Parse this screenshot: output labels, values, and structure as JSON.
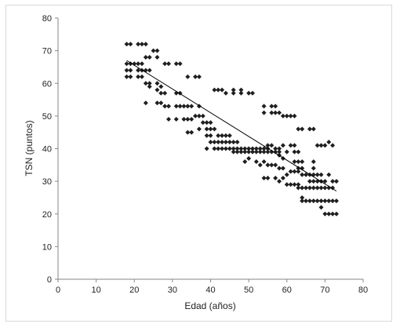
{
  "chart_data": {
    "type": "scatter",
    "xlabel": "Edad (años)",
    "ylabel": "TSN (puntos)",
    "xlim": [
      0,
      80
    ],
    "ylim": [
      0,
      80
    ],
    "xticks": [
      0,
      10,
      20,
      30,
      40,
      50,
      60,
      70,
      80
    ],
    "yticks": [
      0,
      10,
      20,
      30,
      40,
      50,
      60,
      70,
      80
    ],
    "grid": false,
    "marker": "diamond",
    "marker_color": "#1f1f1f",
    "trendline": {
      "x": [
        18,
        73
      ],
      "y": [
        67,
        27
      ],
      "color": "#000000"
    },
    "points": [
      [
        18,
        72
      ],
      [
        19,
        72
      ],
      [
        21,
        72
      ],
      [
        22,
        72
      ],
      [
        23,
        72
      ],
      [
        18,
        66
      ],
      [
        19,
        66
      ],
      [
        20,
        66
      ],
      [
        21,
        66
      ],
      [
        22,
        66
      ],
      [
        18,
        64
      ],
      [
        19,
        64
      ],
      [
        21,
        64
      ],
      [
        22,
        64
      ],
      [
        23,
        64
      ],
      [
        24,
        64
      ],
      [
        18,
        62
      ],
      [
        19,
        62
      ],
      [
        21,
        62
      ],
      [
        22,
        62
      ],
      [
        23,
        68
      ],
      [
        24,
        68
      ],
      [
        25,
        70
      ],
      [
        26,
        70
      ],
      [
        26,
        68
      ],
      [
        23,
        60
      ],
      [
        24,
        60
      ],
      [
        24,
        59
      ],
      [
        26,
        60
      ],
      [
        27,
        59
      ],
      [
        26,
        58
      ],
      [
        27,
        57
      ],
      [
        23,
        54
      ],
      [
        26,
        54
      ],
      [
        27,
        54
      ],
      [
        28,
        66
      ],
      [
        29,
        66
      ],
      [
        31,
        66
      ],
      [
        32,
        66
      ],
      [
        28,
        57
      ],
      [
        31,
        57
      ],
      [
        32,
        57
      ],
      [
        28,
        53
      ],
      [
        29,
        53
      ],
      [
        31,
        53
      ],
      [
        32,
        53
      ],
      [
        33,
        53
      ],
      [
        34,
        53
      ],
      [
        35,
        53
      ],
      [
        29,
        49
      ],
      [
        31,
        49
      ],
      [
        33,
        49
      ],
      [
        34,
        49
      ],
      [
        35,
        49
      ],
      [
        34,
        62
      ],
      [
        36,
        62
      ],
      [
        37,
        62
      ],
      [
        34,
        45
      ],
      [
        35,
        45
      ],
      [
        37,
        46
      ],
      [
        36,
        50
      ],
      [
        37,
        50
      ],
      [
        38,
        50
      ],
      [
        38,
        48
      ],
      [
        39,
        48
      ],
      [
        40,
        48
      ],
      [
        37,
        53
      ],
      [
        39,
        46
      ],
      [
        40,
        46
      ],
      [
        41,
        46
      ],
      [
        39,
        44
      ],
      [
        40,
        44
      ],
      [
        39,
        40
      ],
      [
        41,
        40
      ],
      [
        42,
        40
      ],
      [
        40,
        42
      ],
      [
        41,
        42
      ],
      [
        42,
        42
      ],
      [
        41,
        58
      ],
      [
        42,
        58
      ],
      [
        43,
        58
      ],
      [
        42,
        44
      ],
      [
        43,
        44
      ],
      [
        44,
        44
      ],
      [
        45,
        44
      ],
      [
        43,
        42
      ],
      [
        44,
        42
      ],
      [
        45,
        42
      ],
      [
        46,
        42
      ],
      [
        47,
        42
      ],
      [
        43,
        40
      ],
      [
        44,
        40
      ],
      [
        45,
        40
      ],
      [
        46,
        40
      ],
      [
        47,
        40
      ],
      [
        48,
        40
      ],
      [
        49,
        40
      ],
      [
        50,
        40
      ],
      [
        51,
        40
      ],
      [
        52,
        40
      ],
      [
        53,
        40
      ],
      [
        54,
        40
      ],
      [
        55,
        40
      ],
      [
        46,
        39
      ],
      [
        47,
        39
      ],
      [
        48,
        39
      ],
      [
        49,
        39
      ],
      [
        50,
        39
      ],
      [
        51,
        39
      ],
      [
        52,
        39
      ],
      [
        53,
        39
      ],
      [
        54,
        39
      ],
      [
        55,
        39
      ],
      [
        56,
        39
      ],
      [
        44,
        57
      ],
      [
        46,
        57
      ],
      [
        48,
        57
      ],
      [
        50,
        57
      ],
      [
        51,
        57
      ],
      [
        46,
        58
      ],
      [
        48,
        58
      ],
      [
        49,
        36
      ],
      [
        50,
        37
      ],
      [
        52,
        36
      ],
      [
        53,
        35
      ],
      [
        54,
        36
      ],
      [
        54,
        53
      ],
      [
        54,
        51
      ],
      [
        56,
        53
      ],
      [
        57,
        53
      ],
      [
        56,
        51
      ],
      [
        57,
        51
      ],
      [
        58,
        51
      ],
      [
        54,
        31
      ],
      [
        55,
        31
      ],
      [
        55,
        41
      ],
      [
        56,
        41
      ],
      [
        57,
        40
      ],
      [
        58,
        40
      ],
      [
        59,
        41
      ],
      [
        55,
        35
      ],
      [
        56,
        35
      ],
      [
        57,
        35
      ],
      [
        58,
        38
      ],
      [
        59,
        37
      ],
      [
        58,
        34
      ],
      [
        59,
        34
      ],
      [
        57,
        39
      ],
      [
        58,
        39
      ],
      [
        60,
        39
      ],
      [
        57,
        31
      ],
      [
        58,
        30
      ],
      [
        59,
        31
      ],
      [
        60,
        32
      ],
      [
        59,
        50
      ],
      [
        60,
        50
      ],
      [
        61,
        50
      ],
      [
        62,
        50
      ],
      [
        60,
        29
      ],
      [
        61,
        29
      ],
      [
        62,
        29
      ],
      [
        63,
        29
      ],
      [
        61,
        41
      ],
      [
        62,
        41
      ],
      [
        62,
        39
      ],
      [
        63,
        39
      ],
      [
        61,
        33
      ],
      [
        62,
        33
      ],
      [
        63,
        33
      ],
      [
        62,
        36
      ],
      [
        63,
        36
      ],
      [
        64,
        36
      ],
      [
        63,
        46
      ],
      [
        64,
        46
      ],
      [
        66,
        46
      ],
      [
        67,
        46
      ],
      [
        63,
        34
      ],
      [
        64,
        34
      ],
      [
        64,
        32
      ],
      [
        63,
        28
      ],
      [
        64,
        28
      ],
      [
        65,
        28
      ],
      [
        66,
        28
      ],
      [
        67,
        28
      ],
      [
        68,
        28
      ],
      [
        69,
        28
      ],
      [
        70,
        28
      ],
      [
        64,
        25
      ],
      [
        64,
        24
      ],
      [
        65,
        24
      ],
      [
        65,
        32
      ],
      [
        66,
        32
      ],
      [
        67,
        32
      ],
      [
        68,
        32
      ],
      [
        69,
        32
      ],
      [
        66,
        30
      ],
      [
        67,
        30
      ],
      [
        68,
        30
      ],
      [
        69,
        30
      ],
      [
        70,
        30
      ],
      [
        66,
        24
      ],
      [
        67,
        24
      ],
      [
        68,
        24
      ],
      [
        69,
        24
      ],
      [
        70,
        24
      ],
      [
        71,
        24
      ],
      [
        72,
        24
      ],
      [
        73,
        24
      ],
      [
        67,
        34
      ],
      [
        67,
        36
      ],
      [
        68,
        41
      ],
      [
        69,
        41
      ],
      [
        70,
        41
      ],
      [
        69,
        22
      ],
      [
        70,
        20
      ],
      [
        71,
        20
      ],
      [
        72,
        20
      ],
      [
        73,
        20
      ],
      [
        71,
        32
      ],
      [
        72,
        30
      ],
      [
        73,
        30
      ],
      [
        71,
        42
      ],
      [
        72,
        41
      ],
      [
        71,
        28
      ],
      [
        72,
        28
      ]
    ]
  }
}
